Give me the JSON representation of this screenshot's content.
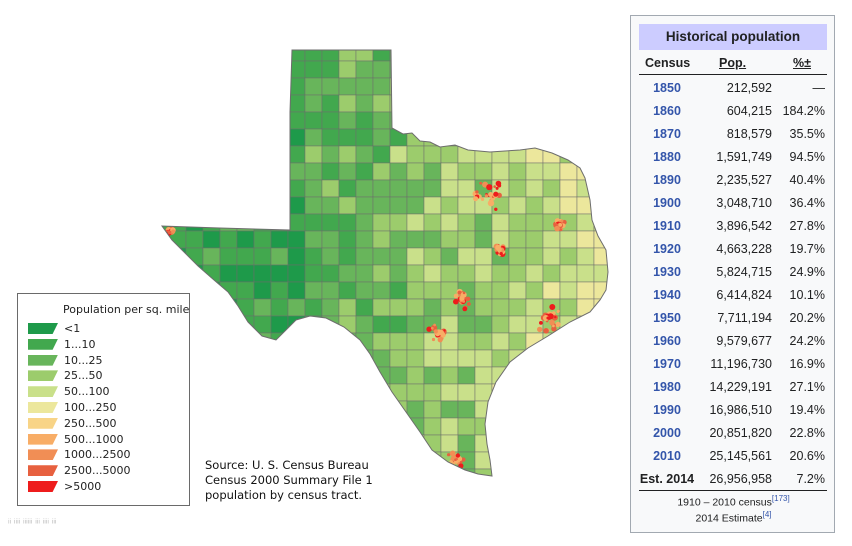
{
  "map": {
    "legend_title": "Population per sq. mile",
    "legend_items": [
      {
        "label": "<1",
        "color": "#1e9a4a"
      },
      {
        "label": "1...10",
        "color": "#42a84e"
      },
      {
        "label": "10...25",
        "color": "#68b55b"
      },
      {
        "label": "25...50",
        "color": "#9ccc6c"
      },
      {
        "label": "50...100",
        "color": "#c9e08a"
      },
      {
        "label": "100...250",
        "color": "#ece79c"
      },
      {
        "label": "250...500",
        "color": "#f8d487"
      },
      {
        "label": "500...1000",
        "color": "#f8ad66"
      },
      {
        "label": "1000...2500",
        "color": "#f18e55"
      },
      {
        "label": "2500...5000",
        "color": "#e7603f"
      },
      {
        "label": ">5000",
        "color": "#ee1c1c"
      }
    ],
    "source_lines": [
      "Source: U. S. Census Bureau",
      "Census 2000 Summary File 1",
      "population by census tract."
    ],
    "faint_line": "ᵢᵢ ᵢᵢᵢᵢ ᵢᵢᵢᵢᵢᵢ ᵢᵢᵢ ᵢᵢᵢᵢ ᵢᵢᵢ"
  },
  "infobox": {
    "title": "Historical population",
    "col_census": "Census",
    "col_pop": "Pop.",
    "col_pct": "%±",
    "rows": [
      {
        "year": "1850",
        "pop": "212,592",
        "pct": "—"
      },
      {
        "year": "1860",
        "pop": "604,215",
        "pct": "184.2%"
      },
      {
        "year": "1870",
        "pop": "818,579",
        "pct": "35.5%"
      },
      {
        "year": "1880",
        "pop": "1,591,749",
        "pct": "94.5%"
      },
      {
        "year": "1890",
        "pop": "2,235,527",
        "pct": "40.4%"
      },
      {
        "year": "1900",
        "pop": "3,048,710",
        "pct": "36.4%"
      },
      {
        "year": "1910",
        "pop": "3,896,542",
        "pct": "27.8%"
      },
      {
        "year": "1920",
        "pop": "4,663,228",
        "pct": "19.7%"
      },
      {
        "year": "1930",
        "pop": "5,824,715",
        "pct": "24.9%"
      },
      {
        "year": "1940",
        "pop": "6,414,824",
        "pct": "10.1%"
      },
      {
        "year": "1950",
        "pop": "7,711,194",
        "pct": "20.2%"
      },
      {
        "year": "1960",
        "pop": "9,579,677",
        "pct": "24.2%"
      },
      {
        "year": "1970",
        "pop": "11,196,730",
        "pct": "16.9%"
      },
      {
        "year": "1980",
        "pop": "14,229,191",
        "pct": "27.1%"
      },
      {
        "year": "1990",
        "pop": "16,986,510",
        "pct": "19.4%"
      },
      {
        "year": "2000",
        "pop": "20,851,820",
        "pct": "22.8%"
      },
      {
        "year": "2010",
        "pop": "25,145,561",
        "pct": "20.6%"
      },
      {
        "year": "Est. 2014",
        "pop": "26,956,958",
        "pct": "7.2%",
        "estimate": true
      }
    ],
    "footnote1": "1910 – 2010 census",
    "footnote1_ref": "[173]",
    "footnote2": "2014 Estimate",
    "footnote2_ref": "[4]"
  }
}
